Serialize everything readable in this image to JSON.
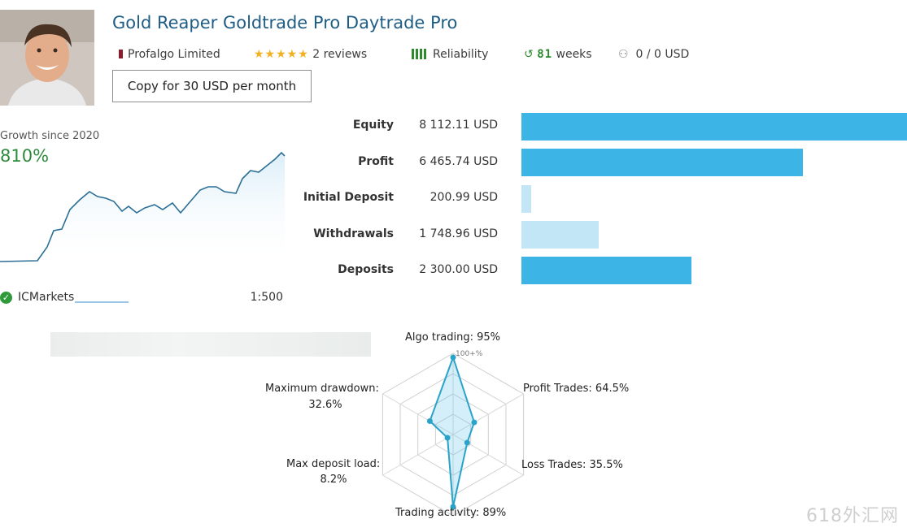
{
  "header": {
    "title": "Gold Reaper Goldtrade Pro Daytrade Pro",
    "seller": "Profalgo Limited",
    "rating_stars": 5,
    "reviews": "2 reviews",
    "reliability_label": "Reliability",
    "weeks_number": "81",
    "weeks_label": "weeks",
    "funds": "0 / 0 USD",
    "copy_button": "Copy for 30 USD per month"
  },
  "growth": {
    "label": "Growth since 2020",
    "value": "810%"
  },
  "broker": {
    "name": "ICMarkets",
    "leverage": "1:500"
  },
  "stats": [
    {
      "label": "Equity",
      "value": "8 112.11 USD",
      "bar": 1.0
    },
    {
      "label": "Profit",
      "value": "6 465.74 USD",
      "bar": 0.73
    },
    {
      "label": "Initial Deposit",
      "value": "200.99 USD",
      "bar": 0.025
    },
    {
      "label": "Withdrawals",
      "value": "1 748.96 USD",
      "bar": 0.2
    },
    {
      "label": "Deposits",
      "value": "2 300.00 USD",
      "bar": 0.44
    }
  ],
  "radar": {
    "axes": [
      {
        "name": "Algo trading",
        "value": "95%",
        "level": 0.95,
        "line2": ""
      },
      {
        "name": "Profit Trades",
        "value": "64.5%",
        "level": 0.3,
        "line2": ""
      },
      {
        "name": "Loss Trades",
        "value": "35.5%",
        "level": 0.2,
        "line2": ""
      },
      {
        "name": "Trading activity",
        "value": "89%",
        "level": 0.89,
        "line2": ""
      },
      {
        "name": "Max deposit load",
        "value": "8.2%",
        "level": 0.08,
        "line2": "8.2%"
      },
      {
        "name": "Maximum drawdown",
        "value": "32.6%",
        "level": 0.33,
        "line2": "32.6%"
      }
    ],
    "labels": {
      "algo": "Algo trading: 95%",
      "profit": "Profit Trades: 64.5%",
      "loss": "Loss Trades: 35.5%",
      "activity": "Trading activity: 89%",
      "maxdep": "Max deposit load:",
      "maxdep_val": "8.2%",
      "maxdd": "Maximum drawdown:",
      "maxdd_val": "32.6%",
      "scale_top": "100+%"
    }
  },
  "colors": {
    "accent": "#3cb4e6",
    "accent_light": "#c2e6f6",
    "green": "#2e8b3e",
    "title_blue": "#1f5d86",
    "radar_line": "#2aa3c9"
  },
  "watermark": "618外汇网"
}
